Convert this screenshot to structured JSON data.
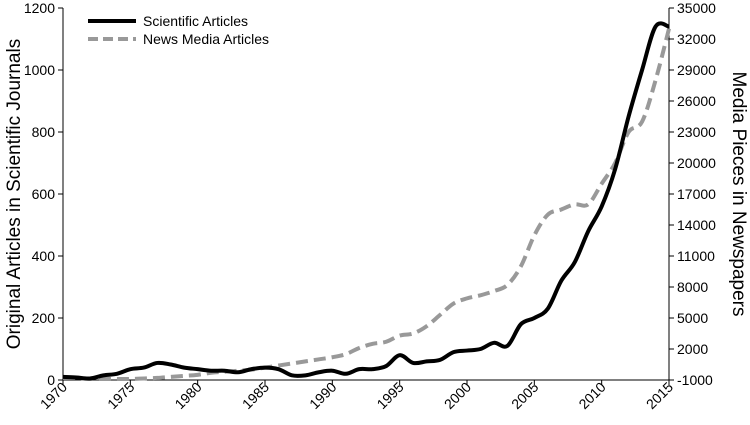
{
  "chart_data": {
    "type": "line",
    "title": "",
    "xlabel": "",
    "ylabel_left": "Original Articles in Scientific Journals",
    "ylabel_right": "Media Pieces in Newspapers",
    "xlim": [
      1970,
      2015
    ],
    "ylim_left": [
      0,
      1200
    ],
    "ylim_right": [
      -1000,
      35000
    ],
    "x_ticks": [
      1970,
      1975,
      1980,
      1985,
      1990,
      1995,
      2000,
      2005,
      2010,
      2015
    ],
    "y_left_ticks": [
      0,
      200,
      400,
      600,
      800,
      1000,
      1200
    ],
    "y_right_ticks": [
      -1000,
      2000,
      5000,
      8000,
      11000,
      14000,
      17000,
      20000,
      23000,
      26000,
      29000,
      32000,
      35000
    ],
    "legend_position": "top-left",
    "series": [
      {
        "name": "Scientific Articles",
        "axis": "left",
        "style": "solid",
        "color": "#000000",
        "x": [
          1970,
          1971,
          1972,
          1973,
          1974,
          1975,
          1976,
          1977,
          1978,
          1979,
          1980,
          1981,
          1982,
          1983,
          1984,
          1985,
          1986,
          1987,
          1988,
          1989,
          1990,
          1991,
          1992,
          1993,
          1994,
          1995,
          1996,
          1997,
          1998,
          1999,
          2000,
          2001,
          2002,
          2003,
          2004,
          2005,
          2006,
          2007,
          2008,
          2009,
          2010,
          2011,
          2012,
          2013,
          2014,
          2015
        ],
        "y": [
          10,
          8,
          5,
          15,
          20,
          35,
          40,
          55,
          50,
          40,
          35,
          30,
          30,
          25,
          35,
          40,
          35,
          15,
          15,
          25,
          30,
          20,
          35,
          35,
          45,
          80,
          55,
          60,
          65,
          90,
          95,
          100,
          120,
          110,
          180,
          200,
          230,
          320,
          380,
          480,
          560,
          680,
          850,
          1000,
          1140,
          1140
        ]
      },
      {
        "name": "News Media Articles",
        "axis": "right",
        "style": "dashed",
        "color": "#999999",
        "x": [
          1970,
          1971,
          1972,
          1973,
          1974,
          1975,
          1976,
          1977,
          1978,
          1979,
          1980,
          1981,
          1982,
          1983,
          1984,
          1985,
          1986,
          1987,
          1988,
          1989,
          1990,
          1991,
          1992,
          1993,
          1994,
          1995,
          1996,
          1997,
          1998,
          1999,
          2000,
          2001,
          2002,
          2003,
          2004,
          2005,
          2006,
          2007,
          2008,
          2009,
          2010,
          2011,
          2012,
          2013,
          2014,
          2015
        ],
        "y": [
          -800,
          -800,
          -900,
          -900,
          -900,
          -900,
          -850,
          -800,
          -700,
          -600,
          -500,
          -300,
          -200,
          -100,
          0,
          200,
          400,
          600,
          800,
          1000,
          1200,
          1500,
          2100,
          2500,
          2700,
          3300,
          3500,
          4200,
          5300,
          6400,
          6900,
          7200,
          7600,
          8200,
          10000,
          13000,
          15000,
          15500,
          16000,
          16000,
          18000,
          20000,
          23000,
          24000,
          28000,
          33000
        ]
      }
    ]
  }
}
